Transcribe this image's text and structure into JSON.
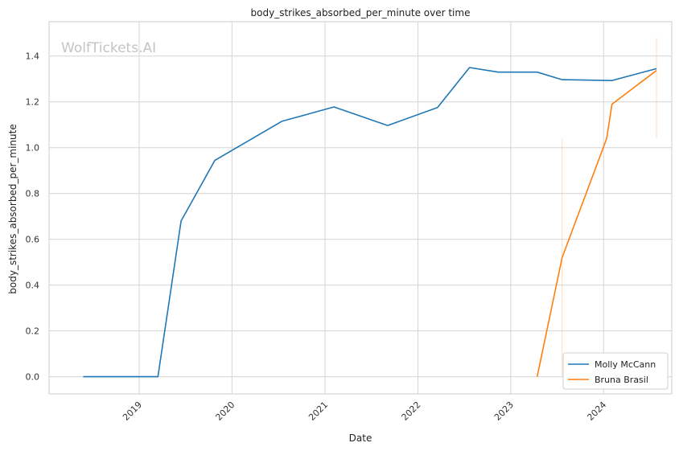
{
  "chart_data": {
    "type": "line",
    "title": "body_strikes_absorbed_per_minute over time",
    "xlabel": "Date",
    "ylabel": "body_strikes_absorbed_per_minute",
    "watermark": "WolfTickets.AI",
    "x_ticks": [
      "2019",
      "2020",
      "2021",
      "2022",
      "2023",
      "2024"
    ],
    "y_ticks": [
      "0.0",
      "0.2",
      "0.4",
      "0.6",
      "0.8",
      "1.0",
      "1.2",
      "1.4"
    ],
    "xlim": [
      "2018-01-12",
      "2024-09-25"
    ],
    "ylim": [
      -0.075,
      1.55
    ],
    "grid": true,
    "legend_position": "lower-right",
    "series": [
      {
        "name": "Molly McCann",
        "color": "#1f77b4",
        "points": [
          [
            "2018-05-26",
            0.0
          ],
          [
            "2019-03-16",
            0.0
          ],
          [
            "2019-06-15",
            0.68
          ],
          [
            "2019-10-26",
            0.945
          ],
          [
            "2020-07-15",
            1.115
          ],
          [
            "2021-02-05",
            1.178
          ],
          [
            "2021-09-04",
            1.097
          ],
          [
            "2022-03-19",
            1.175
          ],
          [
            "2022-07-23",
            1.35
          ],
          [
            "2022-11-12",
            1.33
          ],
          [
            "2023-04-15",
            1.33
          ],
          [
            "2023-07-22",
            1.297
          ],
          [
            "2024-02-03",
            1.293
          ],
          [
            "2024-07-27",
            1.345
          ]
        ]
      },
      {
        "name": "Bruna Brasil",
        "color": "#ff7f0e",
        "points": [
          [
            "2023-04-15",
            0.0
          ],
          [
            "2023-07-22",
            0.52
          ],
          [
            "2024-01-13",
            1.04
          ],
          [
            "2024-02-03",
            1.19
          ],
          [
            "2024-07-27",
            1.337
          ]
        ]
      }
    ]
  }
}
